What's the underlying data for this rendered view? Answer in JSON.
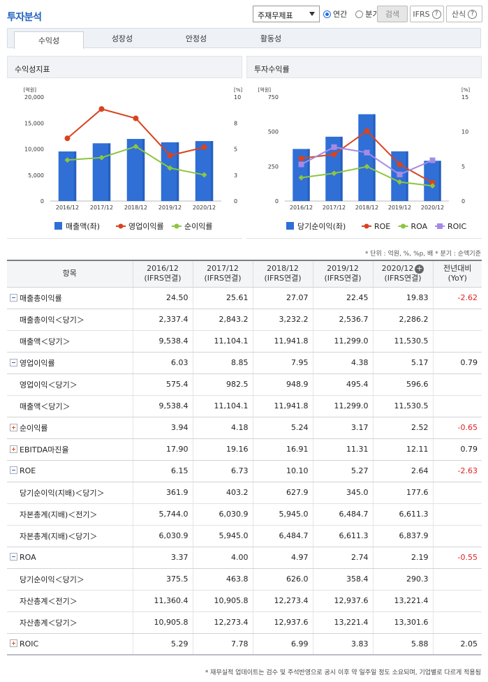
{
  "page_title": "투자분석",
  "report_select": "주재무제표",
  "period": {
    "annual": "연간",
    "quarterly": "분기"
  },
  "buttons": {
    "search": "검색",
    "ifrs": "IFRS",
    "calc": "산식",
    "help": "?"
  },
  "tabs": [
    "수익성",
    "성장성",
    "안정성",
    "활동성"
  ],
  "units": "* 단위 : 억원, %, %p, 배    * 분기 : 순액기준",
  "chart_data": [
    {
      "type": "bar",
      "title": "수익성지표",
      "left_unit": "[억원]",
      "right_unit": "[%]",
      "categories": [
        "2016/12",
        "2017/12",
        "2018/12",
        "2019/12",
        "2020/12"
      ],
      "left_ylim": [
        0,
        20000
      ],
      "left_ticks": [
        "20,000",
        "15,000",
        "10,000",
        "5,000",
        "0"
      ],
      "right_ylim": [
        0,
        10
      ],
      "right_ticks": [
        "10",
        "8",
        "5",
        "3",
        "0"
      ],
      "series": [
        {
          "name": "매출액(좌)",
          "type": "bar",
          "axis": "left",
          "color": "#2f6fd6",
          "values": [
            9538.4,
            11104.1,
            11941.8,
            11299.0,
            11530.5
          ]
        },
        {
          "name": "영업이익률",
          "type": "line",
          "axis": "right",
          "color": "#d9431e",
          "values": [
            6.03,
            8.85,
            7.95,
            4.38,
            5.17
          ]
        },
        {
          "name": "순이익률",
          "type": "line",
          "axis": "right",
          "color": "#8cc63f",
          "values": [
            3.94,
            4.18,
            5.24,
            3.17,
            2.52
          ]
        }
      ]
    },
    {
      "type": "bar",
      "title": "투자수익률",
      "left_unit": "[억원]",
      "right_unit": "[%]",
      "categories": [
        "2016/12",
        "2017/12",
        "2018/12",
        "2019/12",
        "2020/12"
      ],
      "left_ylim": [
        0,
        750
      ],
      "left_ticks": [
        "750",
        "500",
        "250",
        "0"
      ],
      "right_ylim": [
        0,
        15
      ],
      "right_ticks": [
        "15",
        "10",
        "5",
        "0"
      ],
      "series": [
        {
          "name": "당기순이익(좌)",
          "type": "bar",
          "axis": "left",
          "color": "#2f6fd6",
          "values": [
            375.5,
            463.8,
            626.0,
            358.4,
            290.3
          ]
        },
        {
          "name": "ROE",
          "type": "line",
          "axis": "right",
          "color": "#d9431e",
          "values": [
            6.15,
            6.73,
            10.1,
            5.27,
            2.64
          ]
        },
        {
          "name": "ROA",
          "type": "line",
          "axis": "right",
          "color": "#8cc63f",
          "values": [
            3.37,
            4.0,
            4.97,
            2.74,
            2.19
          ]
        },
        {
          "name": "ROIC",
          "type": "line",
          "axis": "right",
          "color": "#a58be6",
          "marker": "square",
          "values": [
            5.29,
            7.78,
            6.99,
            3.83,
            5.88
          ]
        }
      ]
    }
  ],
  "table": {
    "header_item": "항목",
    "columns": [
      {
        "year": "2016/12",
        "basis": "(IFRS연결)"
      },
      {
        "year": "2017/12",
        "basis": "(IFRS연결)"
      },
      {
        "year": "2018/12",
        "basis": "(IFRS연결)"
      },
      {
        "year": "2019/12",
        "basis": "(IFRS연결)"
      },
      {
        "year": "2020/12",
        "basis": "(IFRS연결)"
      }
    ],
    "yoy_header": "전년대비",
    "yoy_sub": "(YoY)",
    "rows": [
      {
        "label": "매출총이익률",
        "kind": "minus",
        "values": [
          "24.50",
          "25.61",
          "27.07",
          "22.45",
          "19.83"
        ],
        "yoy": "-2.62"
      },
      {
        "label": "매출총이익＜당기＞",
        "kind": "sub",
        "values": [
          "2,337.4",
          "2,843.2",
          "3,232.2",
          "2,536.7",
          "2,286.2"
        ],
        "yoy": ""
      },
      {
        "label": "매출액＜당기＞",
        "kind": "sub",
        "values": [
          "9,538.4",
          "11,104.1",
          "11,941.8",
          "11,299.0",
          "11,530.5"
        ],
        "yoy": ""
      },
      {
        "label": "영업이익률",
        "kind": "minus",
        "values": [
          "6.03",
          "8.85",
          "7.95",
          "4.38",
          "5.17"
        ],
        "yoy": "0.79"
      },
      {
        "label": "영업이익＜당기＞",
        "kind": "sub",
        "values": [
          "575.4",
          "982.5",
          "948.9",
          "495.4",
          "596.6"
        ],
        "yoy": ""
      },
      {
        "label": "매출액＜당기＞",
        "kind": "sub",
        "values": [
          "9,538.4",
          "11,104.1",
          "11,941.8",
          "11,299.0",
          "11,530.5"
        ],
        "yoy": ""
      },
      {
        "label": "순이익률",
        "kind": "plus",
        "values": [
          "3.94",
          "4.18",
          "5.24",
          "3.17",
          "2.52"
        ],
        "yoy": "-0.65"
      },
      {
        "label": "EBITDA마진율",
        "kind": "plus",
        "values": [
          "17.90",
          "19.16",
          "16.91",
          "11.31",
          "12.11"
        ],
        "yoy": "0.79"
      },
      {
        "label": "ROE",
        "kind": "minus",
        "values": [
          "6.15",
          "6.73",
          "10.10",
          "5.27",
          "2.64"
        ],
        "yoy": "-2.63"
      },
      {
        "label": "당기순이익(지배)＜당기＞",
        "kind": "sub",
        "values": [
          "361.9",
          "403.2",
          "627.9",
          "345.0",
          "177.6"
        ],
        "yoy": ""
      },
      {
        "label": "자본총계(지배)＜전기＞",
        "kind": "sub",
        "values": [
          "5,744.0",
          "6,030.9",
          "5,945.0",
          "6,484.7",
          "6,611.3"
        ],
        "yoy": ""
      },
      {
        "label": "자본총계(지배)＜당기＞",
        "kind": "sub",
        "values": [
          "6,030.9",
          "5,945.0",
          "6,484.7",
          "6,611.3",
          "6,837.9"
        ],
        "yoy": ""
      },
      {
        "label": "ROA",
        "kind": "minus",
        "values": [
          "3.37",
          "4.00",
          "4.97",
          "2.74",
          "2.19"
        ],
        "yoy": "-0.55"
      },
      {
        "label": "당기순이익＜당기＞",
        "kind": "sub",
        "values": [
          "375.5",
          "463.8",
          "626.0",
          "358.4",
          "290.3"
        ],
        "yoy": ""
      },
      {
        "label": "자산총계＜전기＞",
        "kind": "sub",
        "values": [
          "11,360.4",
          "10,905.8",
          "12,273.4",
          "12,937.6",
          "13,221.4"
        ],
        "yoy": ""
      },
      {
        "label": "자산총계＜당기＞",
        "kind": "sub",
        "values": [
          "10,905.8",
          "12,273.4",
          "12,937.6",
          "13,221.4",
          "13,301.6"
        ],
        "yoy": ""
      },
      {
        "label": "ROIC",
        "kind": "plus",
        "values": [
          "5.29",
          "7.78",
          "6.99",
          "3.83",
          "5.88"
        ],
        "yoy": "2.05"
      }
    ]
  },
  "footnote": "* 재무실적 업데이트는 검수 및 주석반영으로 공시 이후 약 일주일 정도 소요되며, 기업별로 다르게 적용됨"
}
